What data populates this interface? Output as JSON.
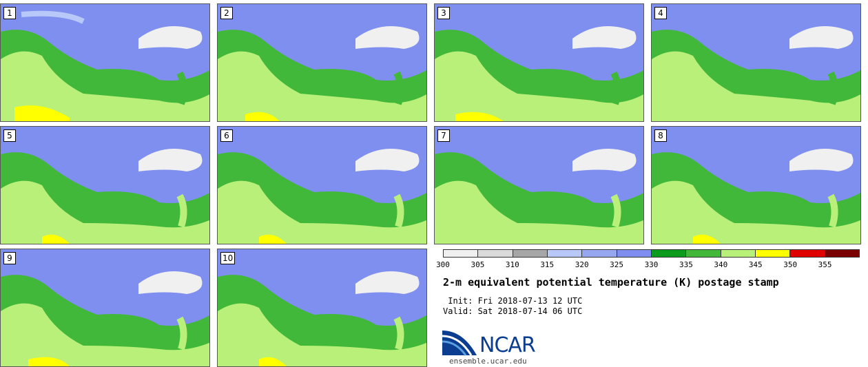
{
  "panels": [
    {
      "label": "1"
    },
    {
      "label": "2"
    },
    {
      "label": "3"
    },
    {
      "label": "4"
    },
    {
      "label": "5"
    },
    {
      "label": "6"
    },
    {
      "label": "7"
    },
    {
      "label": "8"
    },
    {
      "label": "9"
    },
    {
      "label": "10"
    }
  ],
  "colorbar": {
    "colors": [
      "#f0f0f0",
      "#dadada",
      "#a6a6a6",
      "#b8c8f8",
      "#96a6f0",
      "#7f8ff0",
      "#0c9b1c",
      "#42b83a",
      "#b8f07a",
      "#ffff00",
      "#e00000",
      "#7a0000"
    ],
    "ticks": [
      "300",
      "305",
      "310",
      "315",
      "320",
      "325",
      "330",
      "335",
      "340",
      "345",
      "350",
      "355"
    ]
  },
  "title": "2-m equivalent potential temperature (K) postage stamp",
  "init": " Init: Fri 2018-07-13 12 UTC",
  "valid": "Valid: Sat 2018-07-14 06 UTC",
  "logo": {
    "text": "NCAR",
    "site": "ensemble.ucar.edu"
  }
}
